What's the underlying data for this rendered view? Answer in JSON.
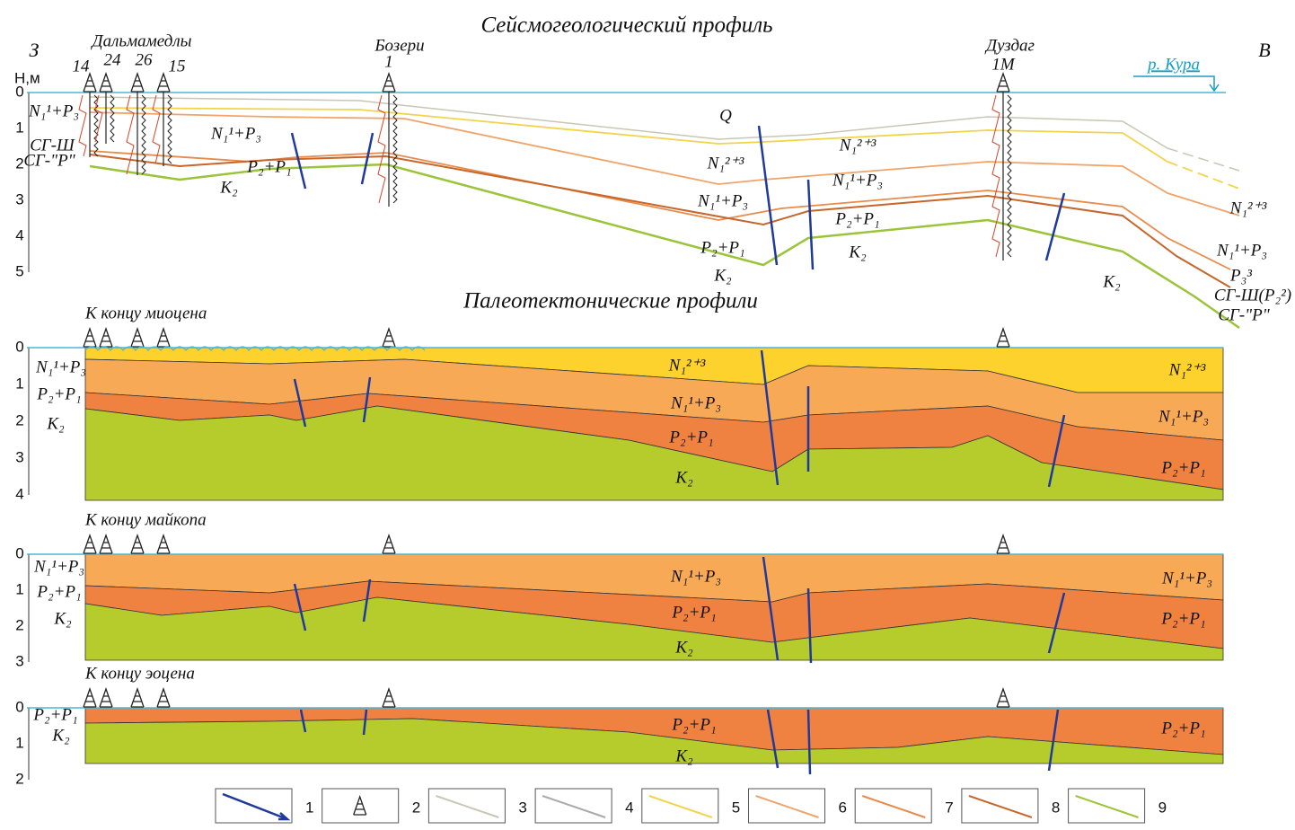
{
  "header": {
    "title": "Сейсмогеологический профиль",
    "west": "З",
    "east": "В",
    "depth_unit": "Н,м"
  },
  "seismic": {
    "depth_ticks": [
      "0",
      "1",
      "2",
      "3",
      "4",
      "5"
    ],
    "wells": [
      {
        "area": "Дальмамедлы",
        "numbers": [
          "14",
          "24",
          "26",
          "15"
        ]
      },
      {
        "area": "Бозери",
        "numbers": [
          "1"
        ]
      },
      {
        "area": "Дуздаг",
        "numbers": [
          "1М"
        ]
      }
    ],
    "river": "р. Кура",
    "labels": [
      "N₁¹+P₃",
      "СГ-Ш",
      "СГ-\"Р\"",
      "N₁¹+P₃",
      "P₂+P₁",
      "K₂",
      "Q",
      "N₁²⁺³",
      "N₁¹+P₃",
      "P₂+P₁",
      "K₂",
      "N₁²⁺³",
      "N₁¹+P₃",
      "P₂+P₁",
      "K₂",
      "K₂",
      "N₁²⁺³",
      "N₁¹+P₃",
      "P₃³",
      "СГ-Ш(P₂²)",
      "СГ-\"Р\""
    ]
  },
  "paleo_title": "Палеотектонические профили",
  "paleo": [
    {
      "title": "К концу миоцена",
      "depth_ticks": [
        "0",
        "1",
        "2",
        "3",
        "4"
      ],
      "labels": [
        "N₁¹+P₃",
        "P₂+P₁",
        "K₂",
        "N₁²⁺³",
        "N₁¹+P₃",
        "P₂+P₁",
        "K₂",
        "N₁²⁺³",
        "N₁¹+P₃",
        "P₂+P₁"
      ]
    },
    {
      "title": "К концу майкопа",
      "depth_ticks": [
        "0",
        "1",
        "2",
        "3"
      ],
      "labels": [
        "N₁¹+P₃",
        "P₂+P₁",
        "K₂",
        "N₁¹+P₃",
        "P₂+P₁",
        "K₂",
        "N₁¹+P₃",
        "P₂+P₁"
      ]
    },
    {
      "title": "К концу эоцена",
      "depth_ticks": [
        "0",
        "1",
        "2"
      ],
      "labels": [
        "P₂+P₁",
        "K₂",
        "P₂+P₁",
        "K₂",
        "P₂+P₁"
      ]
    }
  ],
  "legend": [
    "1",
    "2",
    "3",
    "4",
    "5",
    "6",
    "7",
    "8",
    "9"
  ]
}
